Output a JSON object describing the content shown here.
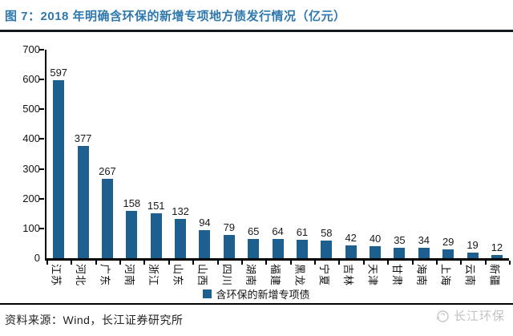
{
  "header": {
    "title": "图 7：2018 年明确含环保的新增专项地方债发行情况（亿元）"
  },
  "chart_data": {
    "type": "bar",
    "title": "2018 年明确含环保的新增专项地方债发行情况（亿元）",
    "categories": [
      "江苏",
      "河北",
      "广东",
      "河南",
      "浙江",
      "山东",
      "山西",
      "四川",
      "湖南",
      "福建",
      "黑龙",
      "宁夏",
      "吉林",
      "天津",
      "甘肃",
      "海南",
      "上海",
      "云南",
      "新疆"
    ],
    "values": [
      597,
      377,
      267,
      158,
      151,
      132,
      94,
      79,
      65,
      64,
      61,
      58,
      42,
      40,
      35,
      34,
      29,
      19,
      12
    ],
    "series_name": "含环保的新增专项债",
    "xlabel": "",
    "ylabel": "",
    "ylim": [
      0,
      700
    ],
    "yticks": [
      0,
      100,
      200,
      300,
      400,
      500,
      600,
      700
    ],
    "grid": false,
    "data_labels": true,
    "legend_position": "bottom",
    "x_label_rotation_deg": 90
  },
  "legend": {
    "label": "含环保的新增专项债",
    "swatch_color": "#1D5F8E"
  },
  "footer": {
    "source": "资料来源：Wind，长江证券研究所",
    "watermark": "长江环保"
  },
  "colors": {
    "title": "#2E78AD",
    "bar": "#1D5F8E",
    "axis": "#000000",
    "watermark": "#C2C2C2"
  },
  "icons": {
    "watermark_logo": "changjiang-circle-logo"
  }
}
